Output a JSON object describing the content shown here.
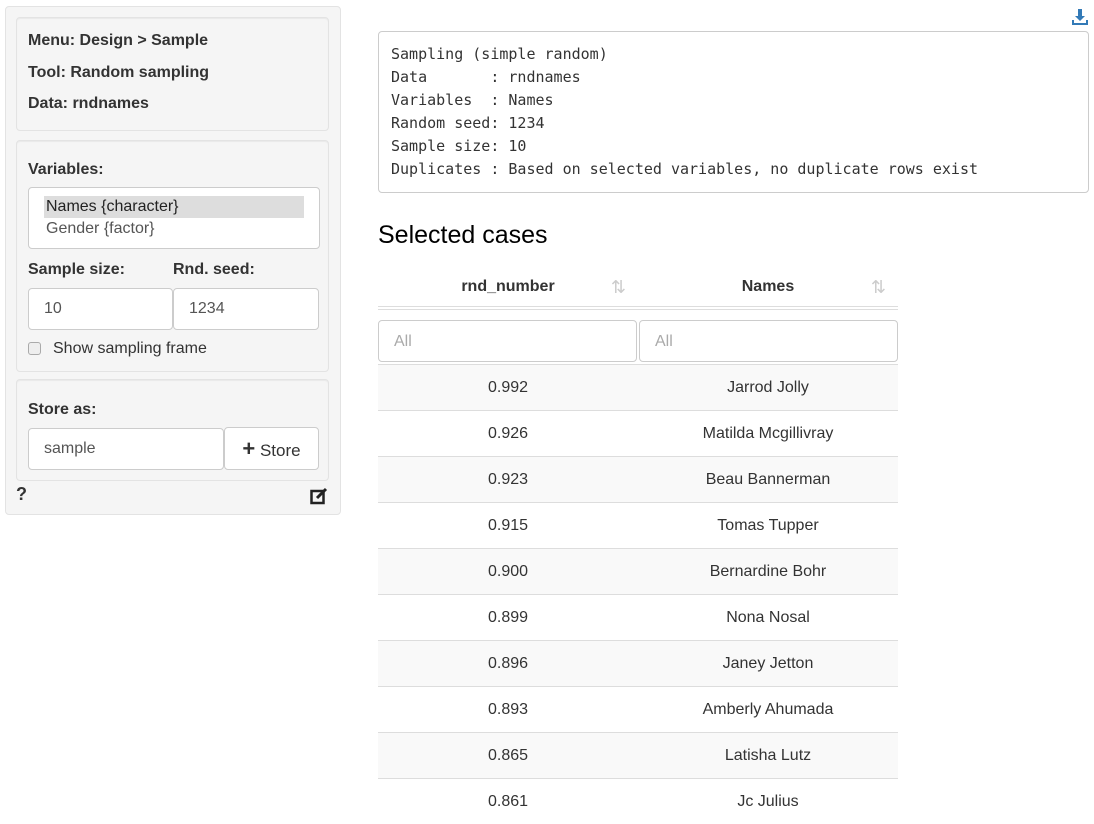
{
  "sidebar": {
    "menu": "Menu: Design > Sample",
    "tool": "Tool: Random sampling",
    "data": "Data: rndnames",
    "variables_label": "Variables:",
    "variables": [
      "Names {character}",
      "Gender {factor}"
    ],
    "sample_size_label": "Sample size:",
    "sample_size": "10",
    "seed_label": "Rnd. seed:",
    "seed": "1234",
    "show_frame_label": "Show sampling frame",
    "store_label": "Store as:",
    "store_value": "sample",
    "store_button": "Store"
  },
  "output": {
    "summary": "Sampling (simple random)\nData       : rndnames\nVariables  : Names\nRandom seed: 1234\nSample size: 10\nDuplicates : Based on selected variables, no duplicate rows exist"
  },
  "table": {
    "title": "Selected cases",
    "columns": [
      "rnd_number",
      "Names"
    ],
    "filter_placeholder": "All",
    "rows": [
      [
        "0.992",
        "Jarrod Jolly"
      ],
      [
        "0.926",
        "Matilda Mcgillivray"
      ],
      [
        "0.923",
        "Beau Bannerman"
      ],
      [
        "0.915",
        "Tomas Tupper"
      ],
      [
        "0.900",
        "Bernardine Bohr"
      ],
      [
        "0.899",
        "Nona Nosal"
      ],
      [
        "0.896",
        "Janey Jetton"
      ],
      [
        "0.893",
        "Amberly Ahumada"
      ],
      [
        "0.865",
        "Latisha Lutz"
      ],
      [
        "0.861",
        "Jc Julius"
      ]
    ]
  },
  "colors": {
    "accent": "#337ab7"
  }
}
